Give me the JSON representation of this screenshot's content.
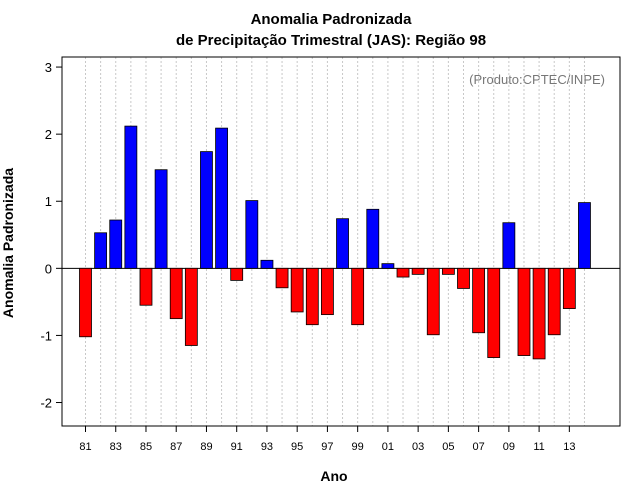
{
  "chart_data": {
    "type": "bar",
    "title": "Anomalia Padronizada",
    "subtitle": "de Precipitação Trimestral (JAS): Região 98",
    "xlabel": "Ano",
    "ylabel": "Anomalia Padronizada",
    "annotation": "(Produto:CPTEC/INPE)",
    "ylim": [
      -2.35,
      3.15
    ],
    "yticks": [
      -2,
      -1,
      0,
      1,
      2,
      3
    ],
    "xtick_labels": [
      "81",
      "83",
      "85",
      "87",
      "89",
      "91",
      "93",
      "95",
      "97",
      "99",
      "01",
      "03",
      "05",
      "07",
      "09",
      "11",
      "13"
    ],
    "categories": [
      "1981",
      "1982",
      "1983",
      "1984",
      "1985",
      "1986",
      "1987",
      "1988",
      "1989",
      "1990",
      "1991",
      "1992",
      "1993",
      "1994",
      "1995",
      "1996",
      "1997",
      "1998",
      "1999",
      "2000",
      "2001",
      "2002",
      "2003",
      "2004",
      "2005",
      "2006",
      "2007",
      "2008",
      "2009",
      "2010",
      "2011",
      "2012",
      "2013",
      "2014"
    ],
    "values": [
      -1.02,
      0.53,
      0.72,
      2.12,
      -0.55,
      1.47,
      -0.75,
      -1.15,
      1.74,
      2.09,
      -0.18,
      1.01,
      0.12,
      -0.29,
      -0.65,
      -0.84,
      -0.69,
      0.74,
      -0.84,
      0.88,
      0.07,
      -0.13,
      -0.09,
      -0.99,
      -0.09,
      -0.3,
      -0.96,
      -1.33,
      0.68,
      -1.3,
      -1.35,
      -0.99,
      -0.6,
      0.98
    ],
    "positive_color": "#0000ff",
    "negative_color": "#ff0000",
    "grid": "vertical dotted"
  }
}
